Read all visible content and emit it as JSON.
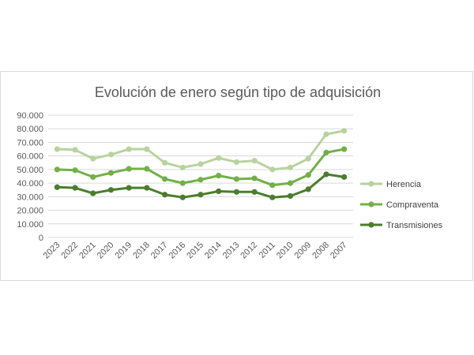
{
  "chart_data": {
    "type": "line",
    "title": "Evolución de enero según tipo de adquisición",
    "xlabel": "",
    "ylabel": "",
    "categories": [
      "2023",
      "2022",
      "2021",
      "2020",
      "2019",
      "2018",
      "2017",
      "2016",
      "2015",
      "2014",
      "2013",
      "2012",
      "2011",
      "2010",
      "2009",
      "2008",
      "2007"
    ],
    "ylim": [
      0,
      90000
    ],
    "y_ticks": [
      0,
      10000,
      20000,
      30000,
      40000,
      50000,
      60000,
      70000,
      80000,
      90000
    ],
    "y_tick_labels": [
      "0",
      "10.000",
      "20.000",
      "30.000",
      "40.000",
      "50.000",
      "60.000",
      "70.000",
      "80.000",
      "90.000"
    ],
    "grid": true,
    "legend_position": "right",
    "series": [
      {
        "name": "Herencia",
        "color": "#b8d39e",
        "values": [
          65000,
          64500,
          58000,
          61000,
          65000,
          65000,
          55000,
          51500,
          54000,
          58500,
          55500,
          56500,
          50000,
          51500,
          58000,
          76000,
          78500
        ]
      },
      {
        "name": "Compraventa",
        "color": "#72b047",
        "values": [
          50000,
          49500,
          44500,
          47500,
          50500,
          50500,
          43000,
          40000,
          42500,
          45500,
          43000,
          43500,
          38500,
          40000,
          46000,
          62500,
          65000
        ]
      },
      {
        "name": "Transmisiones",
        "color": "#4a7d2d",
        "values": [
          37000,
          36500,
          32500,
          35000,
          36500,
          36500,
          31500,
          29500,
          31500,
          34000,
          33500,
          33500,
          29500,
          30500,
          35500,
          46500,
          44500
        ]
      }
    ]
  }
}
